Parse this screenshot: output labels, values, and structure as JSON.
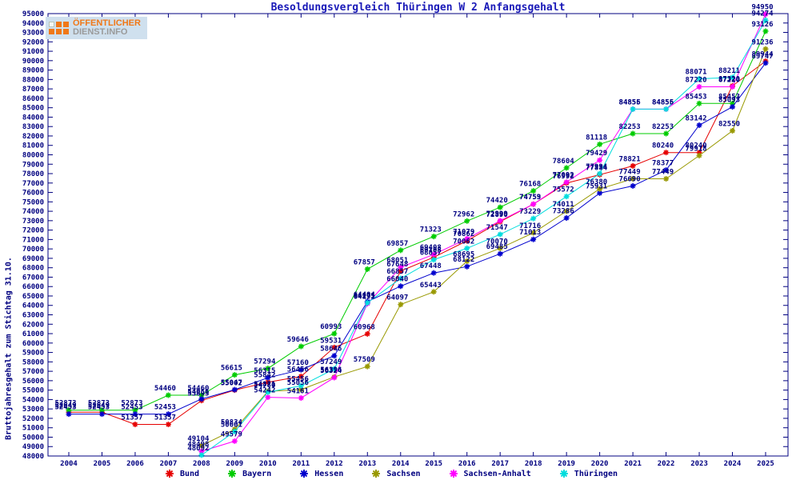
{
  "page_title": "Besoldungsvergleich Thüringen W 2 Anfangsgehalt",
  "logo": {
    "line1": "ÖFFENTLICHER",
    "line2": "DIENST.INFO"
  },
  "axis_color": "#000080",
  "label_color": "#000080",
  "chart_data": {
    "type": "line",
    "title": "Besoldungsvergleich Thüringen W 2 Anfangsgehalt",
    "xlabel": "",
    "ylabel": "Bruttojahresgehalt zum Stichtag 31.10.",
    "ylim": [
      48000,
      95000
    ],
    "ytick_step": 1000,
    "grid": false,
    "legend_position": "bottom",
    "point_labels": true,
    "x": [
      2004,
      2005,
      2006,
      2007,
      2008,
      2009,
      2010,
      2011,
      2012,
      2013,
      2014,
      2015,
      2016,
      2017,
      2018,
      2019,
      2020,
      2021,
      2022,
      2023,
      2024,
      2025
    ],
    "series": [
      {
        "name": "Bund",
        "color": "#e60000",
        "values": [
          52649,
          52649,
          51357,
          51357,
          53893,
          55002,
          55842,
          56456,
          59531,
          60968,
          67648,
          69108,
          70862,
          72890,
          74753,
          76992,
          77884,
          78821,
          80240,
          80240,
          87320,
          89944
        ]
      },
      {
        "name": "Bayern",
        "color": "#00cc00",
        "values": [
          52873,
          52873,
          52873,
          54460,
          54460,
          56615,
          57294,
          59646,
          60993,
          67857,
          69857,
          71323,
          72962,
          74420,
          76168,
          78604,
          81118,
          82253,
          82253,
          85453,
          85453,
          93126
        ]
      },
      {
        "name": "Hessen",
        "color": "#0000cd",
        "values": [
          52453,
          52453,
          52453,
          52453,
          54056,
          55047,
          56315,
          57160,
          58646,
          64404,
          66040,
          67448,
          68122,
          69485,
          71013,
          73286,
          75931,
          76690,
          78377,
          83142,
          85093,
          89747
        ]
      },
      {
        "name": "Sachsen",
        "color": "#999900",
        "values": [
          null,
          null,
          null,
          null,
          49104,
          50834,
          54871,
          55056,
          56396,
          57509,
          64097,
          65443,
          68695,
          70070,
          71716,
          74011,
          76380,
          77449,
          77449,
          79918,
          82550,
          91236
        ]
      },
      {
        "name": "Sachsen-Anhalt",
        "color": "#ff00ff",
        "values": [
          null,
          null,
          null,
          null,
          48498,
          49579,
          54242,
          54161,
          56324,
          64191,
          68051,
          69408,
          71079,
          72999,
          74759,
          77092,
          79429,
          84856,
          84856,
          87220,
          87220,
          94950
        ]
      },
      {
        "name": "Thüringen",
        "color": "#00dddd",
        "values": [
          null,
          null,
          null,
          null,
          48092,
          50601,
          54780,
          55456,
          57249,
          64275,
          66857,
          68857,
          70062,
          71547,
          73229,
          75572,
          77994,
          84855,
          84855,
          88071,
          88211,
          94274
        ]
      }
    ]
  }
}
